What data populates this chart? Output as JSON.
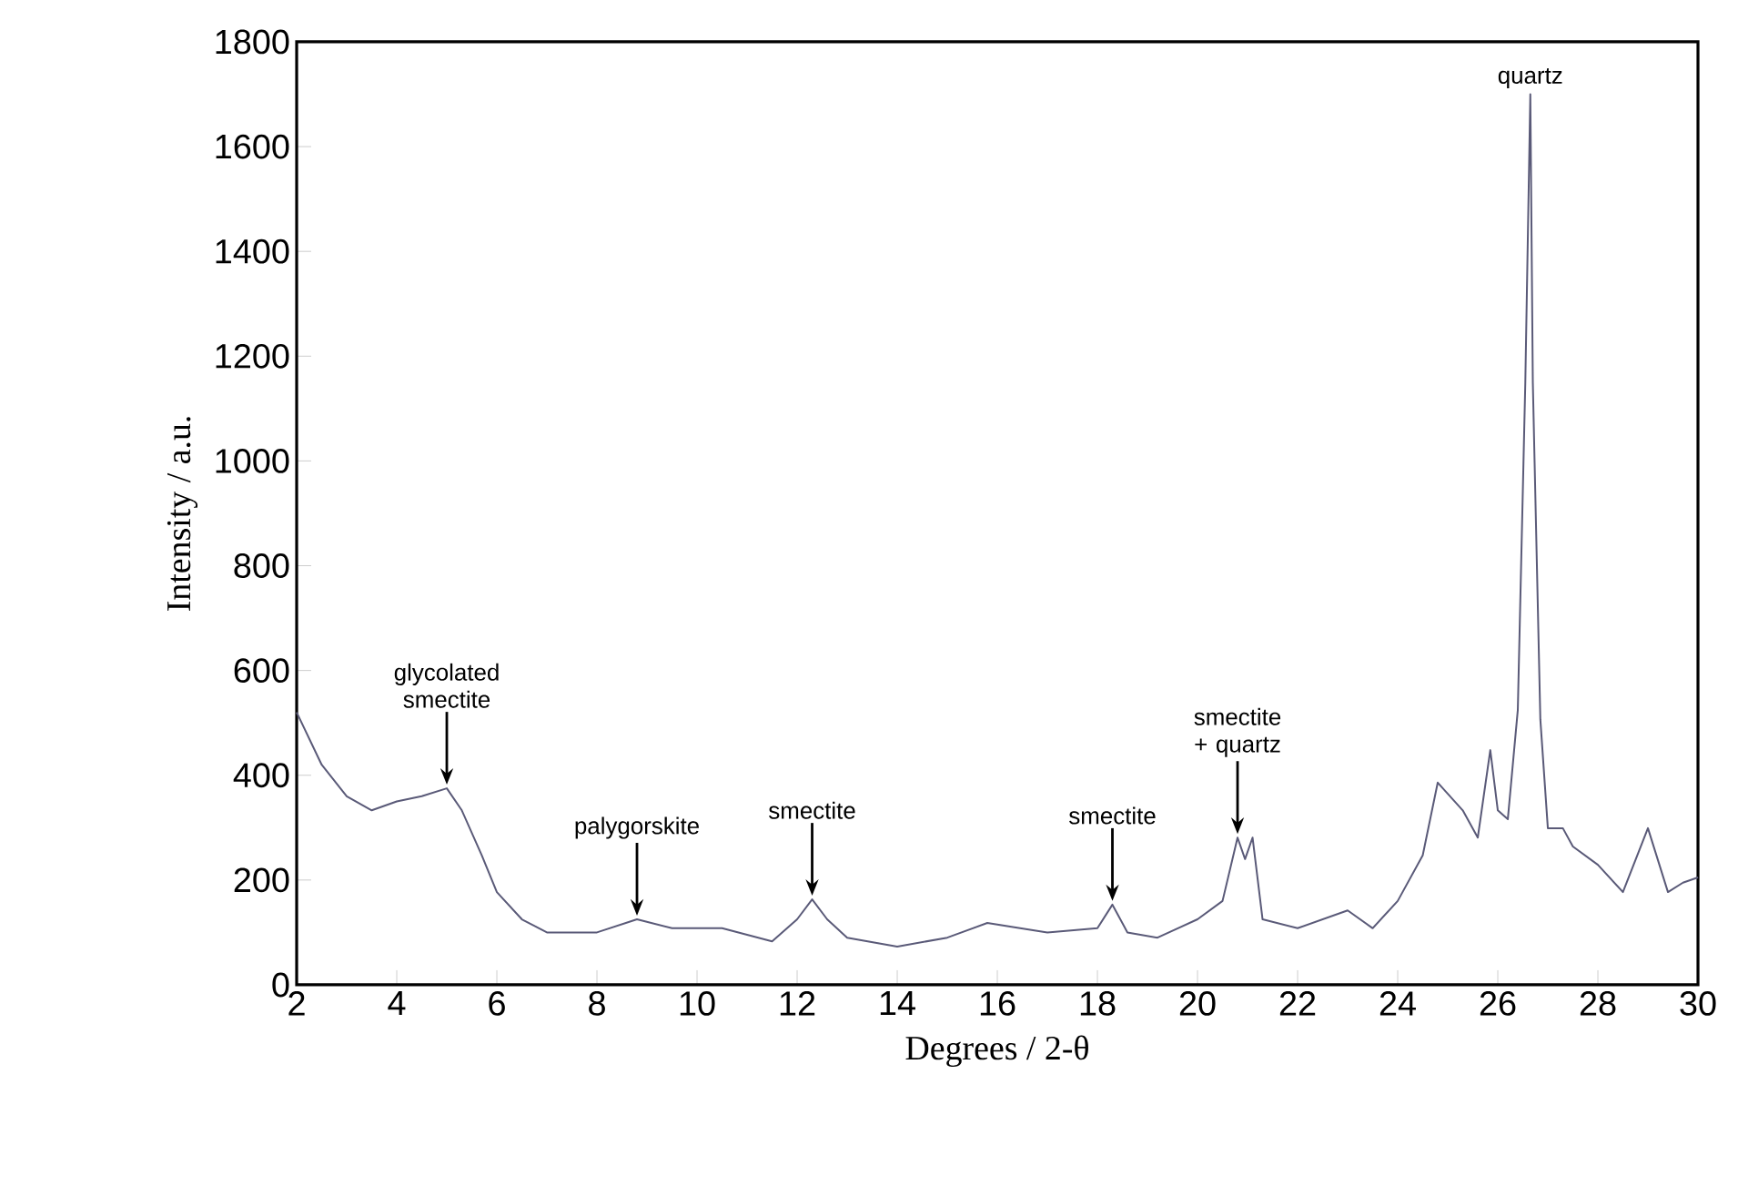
{
  "chart_data": {
    "type": "line",
    "xlabel": "Degrees / 2-θ",
    "ylabel": "Intensity / a.u.",
    "color": "#5a5a78",
    "xlim": [
      2,
      30
    ],
    "ylim": [
      0,
      1800
    ],
    "xticks": [
      2,
      4,
      6,
      8,
      10,
      12,
      14,
      16,
      18,
      20,
      22,
      24,
      26,
      28,
      30
    ],
    "yticks": [
      0,
      200,
      400,
      600,
      800,
      1000,
      1200,
      1400,
      1600,
      1800
    ],
    "x": [
      2,
      2.5,
      3,
      3.5,
      4,
      4.5,
      5,
      5.3,
      5.7,
      6,
      6.5,
      7,
      8,
      8.8,
      9.5,
      10.5,
      11.5,
      12,
      12.3,
      12.6,
      13,
      14,
      15,
      15.8,
      17,
      18,
      18.3,
      18.6,
      19.2,
      20,
      20.5,
      20.8,
      20.95,
      21.1,
      21.3,
      22,
      23,
      23.5,
      24,
      24.5,
      24.8,
      25.3,
      25.6,
      25.85,
      26,
      26.2,
      26.4,
      26.55,
      26.65,
      26.7,
      26.85,
      27,
      27.3,
      27.5,
      28,
      28.5,
      29,
      29.4,
      29.7,
      30
    ],
    "values": [
      520,
      420,
      360,
      333,
      350,
      360,
      375,
      333,
      247,
      177,
      125,
      100,
      100,
      125,
      108,
      108,
      83,
      125,
      163,
      125,
      90,
      73,
      90,
      118,
      100,
      108,
      153,
      100,
      90,
      125,
      160,
      281,
      240,
      281,
      125,
      108,
      142,
      108,
      160,
      247,
      386,
      333,
      281,
      448,
      333,
      316,
      525,
      1150,
      1700,
      1150,
      507,
      299,
      299,
      264,
      229,
      177,
      299,
      177,
      195,
      205
    ],
    "annotations": [
      {
        "text": "glycolated smectite",
        "x": 5,
        "y": 375
      },
      {
        "text": "palygorskite",
        "x": 8.8,
        "y": 125
      },
      {
        "text": "smectite",
        "x": 12.3,
        "y": 163
      },
      {
        "text": "smectite",
        "x": 18.3,
        "y": 153
      },
      {
        "text": "smectite + quartz",
        "x": 20.8,
        "y": 281
      },
      {
        "text": "quartz",
        "x": 26.65,
        "y": 1700
      }
    ]
  }
}
